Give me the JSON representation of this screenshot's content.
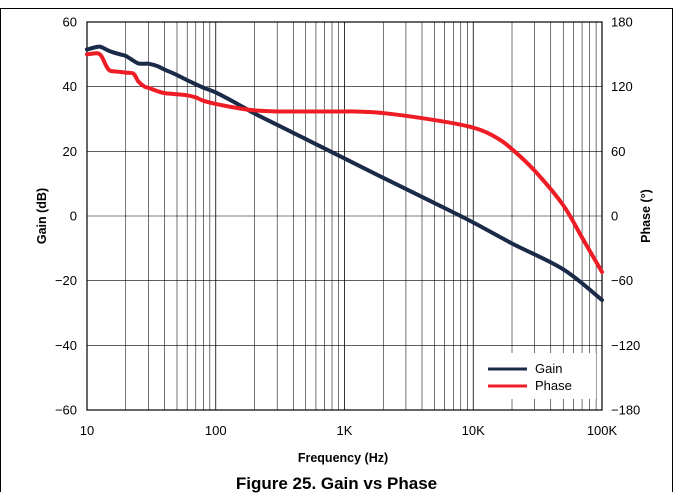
{
  "caption": "Figure 25. Gain vs Phase",
  "chart_data": {
    "type": "line",
    "xscale": "log",
    "xlabel": "Frequency (Hz)",
    "ylabel": "Gain (dB)",
    "y2label": "Phase (°)",
    "xlim": [
      10,
      100000
    ],
    "ylim": [
      -60,
      60
    ],
    "y2lim": [
      -180,
      180
    ],
    "xticks": [
      10,
      100,
      1000,
      10000,
      100000
    ],
    "xtick_labels": [
      "10",
      "100",
      "1K",
      "10K",
      "100K"
    ],
    "yticks": [
      -60,
      -40,
      -20,
      0,
      20,
      40,
      60
    ],
    "ytick_labels": [
      "−60",
      "−40",
      "−20",
      "0",
      "20",
      "40",
      "60"
    ],
    "y2ticks": [
      -180,
      -120,
      -60,
      0,
      60,
      120,
      180
    ],
    "y2tick_labels": [
      "−180",
      "−120",
      "−60",
      "0",
      "60",
      "120",
      "180"
    ],
    "grid": true,
    "legend": "bottom-right",
    "series": [
      {
        "name": "Gain",
        "axis": "left",
        "color": "#1b2a49",
        "x": [
          10,
          12,
          13,
          15,
          18,
          20,
          23,
          25,
          28,
          30,
          35,
          40,
          50,
          60,
          80,
          100,
          150,
          200,
          300,
          500,
          1000,
          2000,
          5000,
          10000,
          20000,
          50000,
          100000
        ],
        "y": [
          51.5,
          52.3,
          52.2,
          51,
          50,
          49.5,
          48,
          47.2,
          47.1,
          47.1,
          46.4,
          45.3,
          43.6,
          42,
          39.7,
          38.2,
          34.5,
          31.7,
          28.2,
          23.8,
          17.8,
          11.8,
          4,
          -2,
          -8.5,
          -16.5,
          -26
        ]
      },
      {
        "name": "Phase",
        "axis": "right",
        "color": "#ee1c24",
        "x": [
          10,
          12,
          13,
          14,
          15,
          17,
          20,
          23,
          25,
          28,
          30,
          35,
          40,
          50,
          60,
          70,
          80,
          100,
          150,
          200,
          300,
          500,
          1000,
          1200,
          2000,
          5000,
          10000,
          15000,
          20000,
          30000,
          50000,
          70000,
          100000
        ],
        "y": [
          150,
          151,
          148,
          140,
          135,
          134,
          133,
          132,
          125,
          120,
          119,
          116,
          114,
          113,
          112,
          110,
          107,
          104,
          100,
          98,
          97,
          97,
          97,
          97,
          95.5,
          89,
          82,
          73,
          62,
          42,
          10,
          -20,
          -52
        ]
      }
    ]
  }
}
